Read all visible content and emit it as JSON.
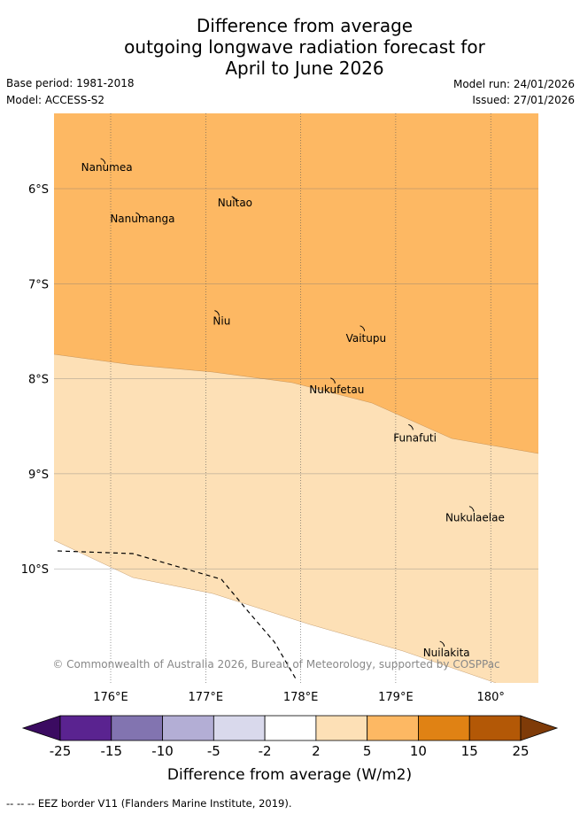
{
  "title": {
    "line1": "Difference from average",
    "line2": "outgoing longwave radiation forecast for",
    "line3": "April to June 2026"
  },
  "meta": {
    "base_period": "Base period: 1981-2018",
    "model": "Model: ACCESS-S2",
    "model_run": "Model run: 24/01/2026",
    "issued": "Issued: 27/01/2026"
  },
  "map": {
    "lat_labels": [
      "6°S",
      "7°S",
      "8°S",
      "9°S",
      "10°S"
    ],
    "lon_labels": [
      "176°E",
      "177°E",
      "178°E",
      "179°E",
      "180°"
    ],
    "places": [
      {
        "name": "Nanumea",
        "lon": 175.95,
        "lat": -5.72
      },
      {
        "name": "Nuitao",
        "lon": 177.33,
        "lat": -6.12
      },
      {
        "name": "Nanumanga",
        "lon": 176.32,
        "lat": -6.29
      },
      {
        "name": "Niu",
        "lon": 177.15,
        "lat": -7.32
      },
      {
        "name": "Vaitupu",
        "lon": 178.68,
        "lat": -7.48
      },
      {
        "name": "Nukufetau",
        "lon": 178.37,
        "lat": -8.03
      },
      {
        "name": "Funafuti",
        "lon": 179.19,
        "lat": -8.52
      },
      {
        "name": "Nukulaelae",
        "lon": 179.83,
        "lat": -9.38
      },
      {
        "name": "Nuilakita",
        "lon": 179.52,
        "lat": -10.8
      }
    ],
    "copyright": "© Commonwealth of Australia 2026, Bureau of Meteorology, supported by COSPPac"
  },
  "colorbar": {
    "label": "Difference from average (W/m2)",
    "ticks": [
      "-25",
      "-15",
      "-10",
      "-5",
      "-2",
      "2",
      "5",
      "10",
      "15",
      "25"
    ],
    "colors": [
      "#3b0b61",
      "#5a2390",
      "#8274b0",
      "#b3aed5",
      "#d9d9ec",
      "#ffffff",
      "#fde0b6",
      "#fdb863",
      "#e08214",
      "#b35806",
      "#7f3b08"
    ]
  },
  "footer": {
    "legend": "-- -- -- EEZ border V11 (Flanders Marine Institute, 2019)."
  }
}
